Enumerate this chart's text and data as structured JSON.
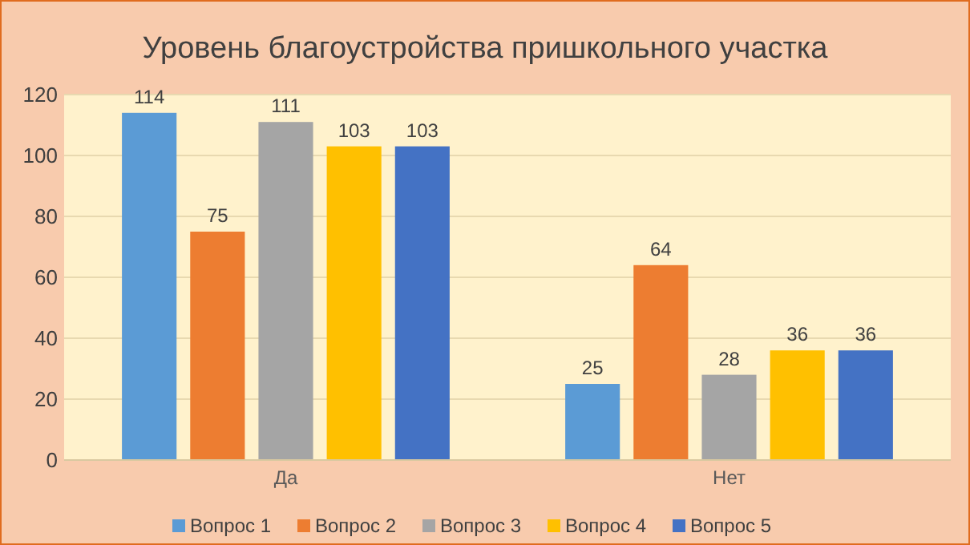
{
  "chart_data": {
    "type": "bar",
    "title": "Уровень благоустройства пришкольного участка",
    "categories": [
      "Да",
      "Нет"
    ],
    "series": [
      {
        "name": "Вопрос 1",
        "color": "#5b9bd5",
        "values": [
          114,
          25
        ]
      },
      {
        "name": "Вопрос 2",
        "color": "#ed7d31",
        "values": [
          75,
          64
        ]
      },
      {
        "name": "Вопрос 3",
        "color": "#a5a5a5",
        "values": [
          111,
          28
        ]
      },
      {
        "name": "Вопрос 4",
        "color": "#ffc000",
        "values": [
          103,
          36
        ]
      },
      {
        "name": "Вопрос 5",
        "color": "#4472c4",
        "values": [
          103,
          36
        ]
      }
    ],
    "ylim": [
      0,
      120
    ],
    "yticks": [
      0,
      20,
      40,
      60,
      80,
      100,
      120
    ],
    "grid": "y",
    "legend": "bottom",
    "data_labels": true
  }
}
